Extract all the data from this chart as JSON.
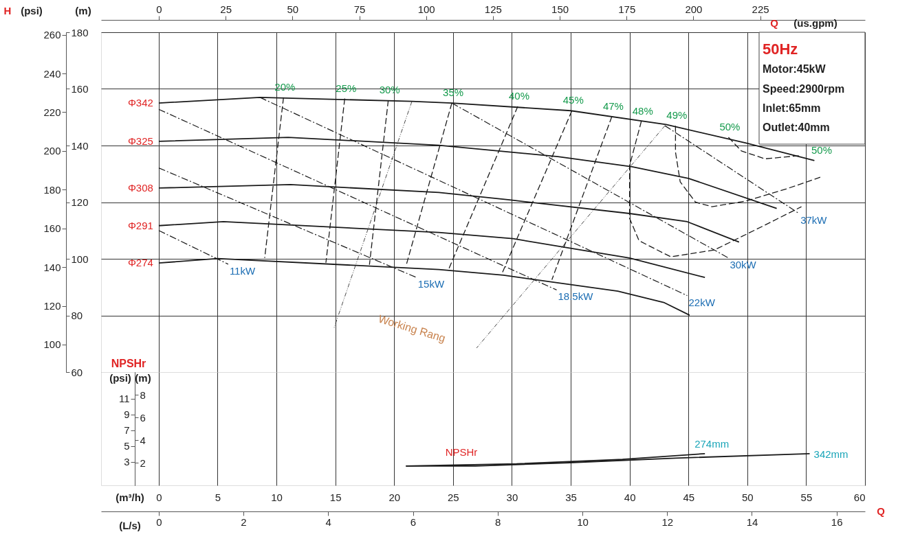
{
  "chart_data": [
    {
      "type": "line",
      "xlim": [
        -4.9,
        60
      ],
      "xticks": [
        0,
        5,
        10,
        15,
        20,
        25,
        30,
        35,
        40,
        45,
        50,
        55,
        60
      ],
      "ylim": [
        60,
        180
      ],
      "yticks": [
        60,
        80,
        100,
        120,
        140,
        160,
        180
      ],
      "y2lim": [
        85.8,
        261.3
      ],
      "y2ticks": [
        100,
        120,
        140,
        160,
        180,
        200,
        220,
        240,
        260
      ],
      "x2lim": [
        -21.6,
        264.2
      ],
      "x2ticks": [
        0,
        25,
        50,
        75,
        100,
        125,
        150,
        175,
        200,
        225
      ],
      "ylabel": "(m)",
      "y2label": "(psi)",
      "x2label": "(us.gpm)",
      "grid": true,
      "tick_labels": "y",
      "annotations": [
        "H",
        "Q",
        "50Hz",
        "Motor:45kW",
        "Speed:2900rpm",
        "Inlet:65mm",
        "Outlet:40mm",
        "Working Rang",
        "50%"
      ],
      "series": [
        {
          "name": "Φ342",
          "color": "#1a1a1a",
          "line_style": "solid",
          "x": [
            0,
            8.6,
            21.5,
            24.9,
            35.0,
            43.1,
            49.9,
            55.7
          ],
          "values": [
            155.0,
            157.0,
            155.6,
            155.0,
            152.3,
            147.4,
            140.9,
            134.7
          ]
        },
        {
          "name": "Φ325",
          "color": "#1a1a1a",
          "line_style": "solid",
          "x": [
            0,
            11.0,
            23.8,
            33.9,
            40.2,
            45.0,
            52.5
          ],
          "values": [
            141.5,
            142.9,
            140.1,
            136.1,
            132.5,
            128.4,
            117.8
          ]
        },
        {
          "name": "Φ308",
          "color": "#1a1a1a",
          "line_style": "solid",
          "x": [
            0,
            11.2,
            23.8,
            29.8,
            40.0,
            44.9,
            49.3
          ],
          "values": [
            125.0,
            126.2,
            123.4,
            120.8,
            116.0,
            113.1,
            105.9
          ]
        },
        {
          "name": "Φ291",
          "color": "#1a1a1a",
          "line_style": "solid",
          "x": [
            0,
            5.5,
            23.8,
            30.1,
            40.0,
            46.4
          ],
          "values": [
            111.7,
            113.1,
            109.3,
            107.1,
            100.3,
            93.4
          ]
        },
        {
          "name": "Φ274",
          "color": "#1a1a1a",
          "line_style": "solid",
          "x": [
            0,
            5.0,
            23.8,
            29.3,
            39.0,
            42.9,
            45.1
          ],
          "values": [
            98.5,
            100.1,
            96.2,
            94.2,
            88.6,
            84.6,
            80.1
          ]
        },
        {
          "name": "20%",
          "color": "#1a1a1a",
          "line_style": "dashed",
          "x": [
            10.6,
            9.0
          ],
          "values": [
            157.0,
            100.3
          ]
        },
        {
          "name": "25%",
          "color": "#1a1a1a",
          "line_style": "dashed",
          "x": [
            15.8,
            14.2
          ],
          "values": [
            156.6,
            98.6
          ]
        },
        {
          "name": "30%",
          "color": "#1a1a1a",
          "line_style": "dashed",
          "x": [
            19.5,
            17.9
          ],
          "values": [
            156.0,
            97.9
          ]
        },
        {
          "name": "35%",
          "color": "#1a1a1a",
          "line_style": "dashed",
          "x": [
            24.9,
            21.0
          ],
          "values": [
            155.0,
            97.4
          ]
        },
        {
          "name": "40%",
          "color": "#1a1a1a",
          "line_style": "dashed",
          "x": [
            30.5,
            24.6
          ],
          "values": [
            153.8,
            96.0
          ]
        },
        {
          "name": "45%",
          "color": "#1a1a1a",
          "line_style": "dashed",
          "x": [
            35.1,
            29.1
          ],
          "values": [
            152.3,
            94.2
          ]
        },
        {
          "name": "47%",
          "color": "#1a1a1a",
          "line_style": "dashed",
          "x": [
            38.5,
            33.4
          ],
          "values": [
            150.3,
            92.6
          ]
        },
        {
          "name": "48%",
          "color": "#1a1a1a",
          "line_style": "dashed",
          "x": [
            41.0,
            40.0,
            40.0,
            40.8,
            43.5,
            47.2,
            51.5,
            54.6
          ],
          "values": [
            148.6,
            132.9,
            114.3,
            106.4,
            100.7,
            103.1,
            111.9,
            118.4
          ]
        },
        {
          "name": "49%",
          "color": "#1a1a1a",
          "line_style": "dashed",
          "x": [
            43.9,
            43.9,
            44.3,
            45.6,
            47.0,
            49.9,
            53.4,
            56.2
          ],
          "values": [
            147.0,
            137.7,
            127.2,
            120.0,
            118.4,
            120.4,
            124.8,
            128.8
          ]
        },
        {
          "name": "50%",
          "color": "#1a1a1a",
          "line_style": "dashed",
          "x": [
            48.4,
            49.5,
            51.5,
            54.6
          ],
          "values": [
            142.9,
            138.1,
            135.3,
            136.5
          ]
        },
        {
          "name": "11kW",
          "color": "#1a1a1a",
          "line_style": "dashdot",
          "x": [
            0,
            5.9
          ],
          "values": [
            110.0,
            98.1
          ]
        },
        {
          "name": "15kW",
          "color": "#1a1a1a",
          "line_style": "dashdot",
          "x": [
            0,
            21.9
          ],
          "values": [
            132.1,
            93.4
          ]
        },
        {
          "name": "18.5kW",
          "color": "#1a1a1a",
          "line_style": "dashdot",
          "x": [
            0,
            33.8
          ],
          "values": [
            152.8,
            89.0
          ]
        },
        {
          "name": "22kW",
          "color": "#1a1a1a",
          "line_style": "dashdot",
          "x": [
            8.6,
            44.9
          ],
          "values": [
            157.0,
            87.0
          ]
        },
        {
          "name": "30kW",
          "color": "#1a1a1a",
          "line_style": "dashdot",
          "x": [
            24.9,
            48.4
          ],
          "values": [
            155.0,
            100.3
          ]
        },
        {
          "name": "37kW",
          "color": "#1a1a1a",
          "line_style": "dashdot",
          "x": [
            43.0,
            54.4
          ],
          "values": [
            147.0,
            116.0
          ]
        },
        {
          "color": "#1a1a1a",
          "line_style": "dotted",
          "x": [
            21.5,
            14.9
          ],
          "values": [
            155.5,
            75.7
          ]
        },
        {
          "color": "#1a1a1a",
          "line_style": "dotted",
          "x": [
            43.0,
            27.0
          ],
          "values": [
            147.0,
            68.5
          ]
        }
      ]
    },
    {
      "type": "line",
      "title": "NPSHr",
      "xlim": [
        -4.9,
        60
      ],
      "xticks": [
        0,
        5,
        10,
        15,
        20,
        25,
        30,
        35,
        40,
        45,
        50,
        55,
        60
      ],
      "ylim": [
        0,
        10
      ],
      "yticks": [
        2,
        4,
        6,
        8
      ],
      "y2lim": [
        0,
        14.4
      ],
      "y2ticks": [
        3,
        5,
        7,
        9,
        11
      ],
      "x2lim": [
        -1.36,
        16.67
      ],
      "x2ticks": [
        0,
        2,
        4,
        6,
        8,
        10,
        12,
        14,
        16
      ],
      "xlabel": "(m³/h)",
      "x2label": "(L/s)",
      "ylabel": "(m)",
      "y2label": "(psi)",
      "grid": "x",
      "annotations": [
        "Q",
        "NPSHr"
      ],
      "series": [
        {
          "name": "274mm",
          "color": "#1a1a1a",
          "line_style": "solid",
          "x": [
            21.0,
            30.4,
            39.4,
            46.4
          ],
          "values": [
            1.7,
            1.9,
            2.3,
            2.8
          ]
        },
        {
          "name": "342mm",
          "color": "#1a1a1a",
          "line_style": "solid",
          "x": [
            21.0,
            26.9,
            34.9,
            43.9,
            55.3
          ],
          "values": [
            1.7,
            1.7,
            2.0,
            2.4,
            2.8
          ]
        }
      ]
    }
  ]
}
